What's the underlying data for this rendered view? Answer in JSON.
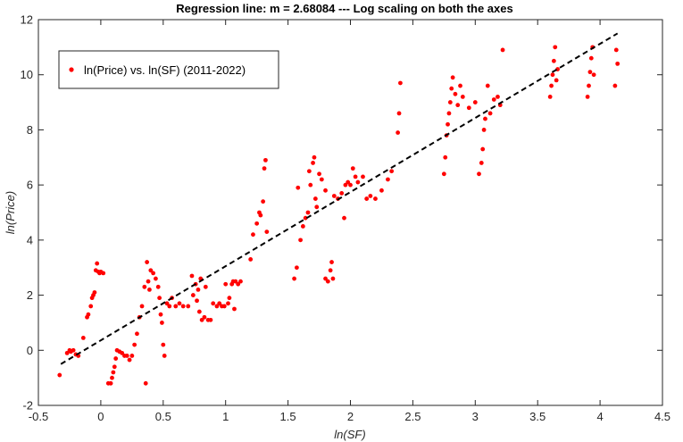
{
  "chart_data": {
    "type": "scatter",
    "title": "Regression line: m = 2.68084 --- Log scaling on both the axes",
    "xlabel": "ln(SF)",
    "ylabel": "ln(Price)",
    "xlim": [
      -0.5,
      4.5
    ],
    "ylim": [
      -2,
      12
    ],
    "xticks": [
      -0.5,
      0,
      0.5,
      1,
      1.5,
      2,
      2.5,
      3,
      3.5,
      4,
      4.5
    ],
    "yticks": [
      -2,
      0,
      2,
      4,
      6,
      8,
      10,
      12
    ],
    "xtick_labels": [
      "-0.5",
      "0",
      "0.5",
      "1",
      "1.5",
      "2",
      "2.5",
      "3",
      "3.5",
      "4",
      "4.5"
    ],
    "ytick_labels": [
      "-2",
      "0",
      "2",
      "4",
      "6",
      "8",
      "10",
      "12"
    ],
    "grid": false,
    "legend": {
      "entries": [
        "ln(Price) vs. ln(SF) (2011-2022)"
      ],
      "placement": "top-left"
    },
    "colors": {
      "points": "#ff0000",
      "regression": "#000000",
      "axes": "#262626"
    },
    "series": [
      {
        "name": "ln(Price) vs. ln(SF) (2011-2022)",
        "kind": "scatter",
        "points": [
          [
            -0.33,
            -0.9
          ],
          [
            -0.27,
            -0.1
          ],
          [
            -0.25,
            0.0
          ],
          [
            -0.24,
            -0.05
          ],
          [
            -0.22,
            0.0
          ],
          [
            -0.2,
            -0.15
          ],
          [
            -0.18,
            -0.2
          ],
          [
            -0.14,
            0.45
          ],
          [
            -0.11,
            1.2
          ],
          [
            -0.1,
            1.3
          ],
          [
            -0.08,
            1.6
          ],
          [
            -0.07,
            1.9
          ],
          [
            -0.06,
            2.0
          ],
          [
            -0.05,
            2.1
          ],
          [
            -0.04,
            2.9
          ],
          [
            -0.03,
            3.15
          ],
          [
            -0.02,
            2.85
          ],
          [
            -0.01,
            2.8
          ],
          [
            0.0,
            2.85
          ],
          [
            0.02,
            2.8
          ],
          [
            0.06,
            -1.2
          ],
          [
            0.08,
            -1.2
          ],
          [
            0.09,
            -1.0
          ],
          [
            0.1,
            -0.8
          ],
          [
            0.11,
            -0.6
          ],
          [
            0.12,
            -0.3
          ],
          [
            0.13,
            0.0
          ],
          [
            0.15,
            -0.05
          ],
          [
            0.17,
            -0.1
          ],
          [
            0.19,
            -0.2
          ],
          [
            0.21,
            -0.2
          ],
          [
            0.23,
            -0.35
          ],
          [
            0.25,
            -0.2
          ],
          [
            0.27,
            0.2
          ],
          [
            0.29,
            0.6
          ],
          [
            0.31,
            1.2
          ],
          [
            0.33,
            1.6
          ],
          [
            0.35,
            2.3
          ],
          [
            0.36,
            -1.2
          ],
          [
            0.37,
            3.2
          ],
          [
            0.38,
            2.5
          ],
          [
            0.39,
            2.2
          ],
          [
            0.4,
            2.9
          ],
          [
            0.42,
            2.8
          ],
          [
            0.44,
            2.6
          ],
          [
            0.46,
            2.3
          ],
          [
            0.47,
            1.9
          ],
          [
            0.48,
            1.3
          ],
          [
            0.49,
            1.0
          ],
          [
            0.5,
            0.2
          ],
          [
            0.51,
            -0.2
          ],
          [
            0.53,
            1.7
          ],
          [
            0.55,
            1.6
          ],
          [
            0.57,
            1.9
          ],
          [
            0.6,
            1.6
          ],
          [
            0.63,
            1.7
          ],
          [
            0.66,
            1.6
          ],
          [
            0.7,
            1.6
          ],
          [
            0.73,
            2.7
          ],
          [
            0.74,
            2.0
          ],
          [
            0.76,
            2.4
          ],
          [
            0.77,
            1.8
          ],
          [
            0.78,
            2.2
          ],
          [
            0.79,
            1.4
          ],
          [
            0.8,
            2.6
          ],
          [
            0.81,
            1.1
          ],
          [
            0.83,
            1.2
          ],
          [
            0.84,
            2.3
          ],
          [
            0.86,
            1.1
          ],
          [
            0.88,
            1.1
          ],
          [
            0.9,
            1.7
          ],
          [
            0.93,
            1.6
          ],
          [
            0.95,
            1.7
          ],
          [
            0.97,
            1.6
          ],
          [
            0.99,
            1.6
          ],
          [
            1.0,
            2.4
          ],
          [
            1.02,
            1.7
          ],
          [
            1.03,
            1.9
          ],
          [
            1.05,
            2.4
          ],
          [
            1.06,
            2.5
          ],
          [
            1.07,
            1.5
          ],
          [
            1.08,
            2.5
          ],
          [
            1.1,
            2.4
          ],
          [
            1.12,
            2.5
          ],
          [
            1.2,
            3.3
          ],
          [
            1.22,
            4.2
          ],
          [
            1.25,
            4.6
          ],
          [
            1.27,
            5.0
          ],
          [
            1.28,
            4.9
          ],
          [
            1.3,
            5.4
          ],
          [
            1.31,
            6.6
          ],
          [
            1.32,
            6.9
          ],
          [
            1.33,
            4.3
          ],
          [
            1.55,
            2.6
          ],
          [
            1.57,
            3.0
          ],
          [
            1.58,
            5.9
          ],
          [
            1.6,
            4.0
          ],
          [
            1.62,
            4.5
          ],
          [
            1.64,
            4.8
          ],
          [
            1.66,
            5.0
          ],
          [
            1.67,
            6.5
          ],
          [
            1.68,
            6.0
          ],
          [
            1.7,
            6.8
          ],
          [
            1.71,
            7.0
          ],
          [
            1.72,
            5.5
          ],
          [
            1.73,
            5.2
          ],
          [
            1.75,
            6.4
          ],
          [
            1.77,
            6.2
          ],
          [
            1.8,
            5.8
          ],
          [
            1.8,
            2.6
          ],
          [
            1.82,
            2.5
          ],
          [
            1.84,
            2.9
          ],
          [
            1.85,
            3.2
          ],
          [
            1.86,
            2.6
          ],
          [
            1.87,
            5.6
          ],
          [
            1.9,
            5.5
          ],
          [
            1.93,
            5.7
          ],
          [
            1.95,
            4.8
          ],
          [
            1.96,
            6.0
          ],
          [
            1.98,
            6.1
          ],
          [
            2.0,
            6.0
          ],
          [
            2.02,
            6.6
          ],
          [
            2.04,
            6.3
          ],
          [
            2.06,
            6.1
          ],
          [
            2.1,
            6.3
          ],
          [
            2.13,
            5.5
          ],
          [
            2.16,
            5.6
          ],
          [
            2.2,
            5.5
          ],
          [
            2.25,
            5.8
          ],
          [
            2.3,
            6.2
          ],
          [
            2.33,
            6.5
          ],
          [
            2.38,
            7.9
          ],
          [
            2.39,
            8.6
          ],
          [
            2.4,
            9.7
          ],
          [
            2.75,
            6.4
          ],
          [
            2.76,
            7.0
          ],
          [
            2.77,
            7.8
          ],
          [
            2.78,
            8.2
          ],
          [
            2.79,
            8.6
          ],
          [
            2.8,
            9.0
          ],
          [
            2.81,
            9.5
          ],
          [
            2.82,
            9.9
          ],
          [
            2.84,
            9.3
          ],
          [
            2.86,
            8.9
          ],
          [
            2.88,
            9.6
          ],
          [
            2.9,
            9.2
          ],
          [
            2.95,
            8.8
          ],
          [
            3.0,
            9.0
          ],
          [
            3.03,
            6.4
          ],
          [
            3.05,
            6.8
          ],
          [
            3.06,
            7.3
          ],
          [
            3.07,
            8.0
          ],
          [
            3.08,
            8.4
          ],
          [
            3.1,
            9.6
          ],
          [
            3.12,
            8.6
          ],
          [
            3.15,
            9.1
          ],
          [
            3.18,
            9.2
          ],
          [
            3.2,
            8.9
          ],
          [
            3.22,
            10.9
          ],
          [
            3.6,
            9.2
          ],
          [
            3.61,
            9.6
          ],
          [
            3.62,
            10.0
          ],
          [
            3.63,
            10.5
          ],
          [
            3.64,
            11.0
          ],
          [
            3.65,
            9.8
          ],
          [
            3.66,
            10.2
          ],
          [
            3.9,
            9.2
          ],
          [
            3.91,
            9.6
          ],
          [
            3.92,
            10.1
          ],
          [
            3.93,
            10.6
          ],
          [
            3.94,
            11.0
          ],
          [
            3.95,
            10.0
          ],
          [
            4.12,
            9.6
          ],
          [
            4.13,
            10.9
          ],
          [
            4.14,
            10.4
          ]
        ]
      },
      {
        "name": "",
        "kind": "line",
        "points": [
          [
            -0.32,
            -0.5
          ],
          [
            4.14,
            11.5
          ]
        ]
      }
    ]
  }
}
